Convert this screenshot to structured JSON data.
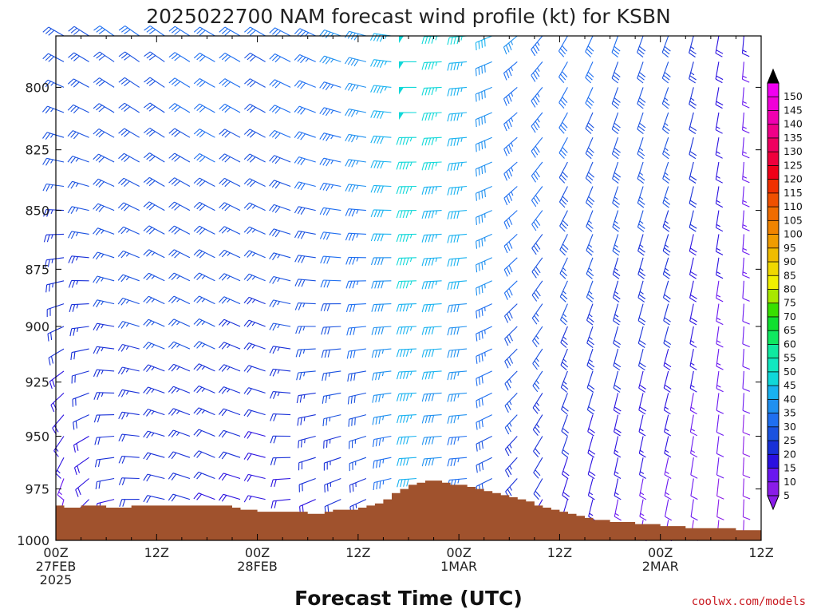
{
  "chart_data": {
    "type": "wind-profile",
    "title": "2025022700 NAM forecast wind profile (kt) for KSBN",
    "xlabel": "Forecast Time (UTC)",
    "credit": "coolwx.com/models",
    "y_ticks": [
      "800",
      "825",
      "850",
      "875",
      "900",
      "925",
      "950",
      "975",
      "1000"
    ],
    "y_range_hpa": [
      780,
      1000
    ],
    "x_range_hours": [
      0,
      84
    ],
    "x_ticks": [
      {
        "hour": 0,
        "line1": "00Z",
        "line2": "27FEB",
        "line3": "2025"
      },
      {
        "hour": 12,
        "line1": "12Z",
        "line2": "",
        "line3": ""
      },
      {
        "hour": 24,
        "line1": "00Z",
        "line2": "28FEB",
        "line3": ""
      },
      {
        "hour": 36,
        "line1": "12Z",
        "line2": "",
        "line3": ""
      },
      {
        "hour": 48,
        "line1": "00Z",
        "line2": "1MAR",
        "line3": ""
      },
      {
        "hour": 60,
        "line1": "12Z",
        "line2": "",
        "line3": ""
      },
      {
        "hour": 72,
        "line1": "00Z",
        "line2": "2MAR",
        "line3": ""
      },
      {
        "hour": 84,
        "line1": "12Z",
        "line2": "",
        "line3": ""
      }
    ],
    "colorbar": {
      "units": "kt",
      "levels": [
        5,
        10,
        15,
        20,
        25,
        30,
        35,
        40,
        45,
        50,
        55,
        60,
        65,
        70,
        75,
        80,
        85,
        90,
        95,
        100,
        105,
        110,
        115,
        120,
        125,
        130,
        135,
        140,
        145,
        150
      ],
      "colors": [
        "#8a1ce8",
        "#6a17f0",
        "#2a10e0",
        "#1830d8",
        "#1a52e0",
        "#1f6ff0",
        "#1f90f0",
        "#18b2f0",
        "#10d8d8",
        "#10e8c0",
        "#10eaa0",
        "#10e860",
        "#10e030",
        "#38e000",
        "#a8e800",
        "#f0f000",
        "#f0d800",
        "#f0bc00",
        "#f09c00",
        "#f08400",
        "#f06c00",
        "#f05000",
        "#f03000",
        "#f00018",
        "#f0003c",
        "#f00060",
        "#f00088",
        "#f000b0",
        "#f000d8",
        "#f000f0"
      ]
    },
    "surface_pressure_hpa": [
      [
        0,
        983
      ],
      [
        1,
        984
      ],
      [
        3,
        983
      ],
      [
        6,
        984
      ],
      [
        9,
        983
      ],
      [
        12,
        983
      ],
      [
        18,
        983
      ],
      [
        21,
        984
      ],
      [
        22,
        985
      ],
      [
        24,
        986
      ],
      [
        28,
        986
      ],
      [
        30,
        987
      ],
      [
        32,
        986
      ],
      [
        33,
        985
      ],
      [
        36,
        984
      ],
      [
        37,
        983
      ],
      [
        38,
        982
      ],
      [
        39,
        980
      ],
      [
        40,
        977
      ],
      [
        41,
        975
      ],
      [
        42,
        973
      ],
      [
        43,
        972
      ],
      [
        44,
        971
      ],
      [
        45,
        971
      ],
      [
        46,
        972
      ],
      [
        47,
        973
      ],
      [
        48,
        973
      ],
      [
        49,
        974
      ],
      [
        50,
        975
      ],
      [
        51,
        976
      ],
      [
        52,
        977
      ],
      [
        53,
        978
      ],
      [
        54,
        979
      ],
      [
        55,
        980
      ],
      [
        56,
        981
      ],
      [
        57,
        983
      ],
      [
        58,
        984
      ],
      [
        59,
        985
      ],
      [
        60,
        986
      ],
      [
        61,
        987
      ],
      [
        62,
        988
      ],
      [
        63,
        989
      ],
      [
        64,
        990
      ],
      [
        66,
        991
      ],
      [
        69,
        992
      ],
      [
        72,
        993
      ],
      [
        75,
        994
      ],
      [
        78,
        994
      ],
      [
        80,
        994
      ],
      [
        81,
        995
      ],
      [
        84,
        995
      ]
    ],
    "wind_field": {
      "levels_hpa": [
        780,
        790,
        800,
        810,
        820,
        830,
        840,
        850,
        860,
        870,
        880,
        890,
        900,
        910,
        920,
        930,
        940,
        950,
        960,
        970,
        980,
        990,
        1000
      ],
      "hour_step": 3,
      "keyframes_hours": [
        0,
        6,
        12,
        18,
        24,
        30,
        36,
        42,
        48,
        54,
        60,
        66,
        72,
        78,
        84
      ],
      "speed_top_kt": [
        28,
        30,
        30,
        32,
        30,
        33,
        38,
        48,
        45,
        35,
        32,
        30,
        28,
        18,
        12
      ],
      "speed_low_kt": [
        12,
        18,
        20,
        18,
        15,
        18,
        22,
        40,
        30,
        20,
        15,
        12,
        10,
        8,
        5
      ],
      "direction_top_deg": [
        300,
        305,
        305,
        300,
        300,
        295,
        285,
        270,
        265,
        230,
        210,
        200,
        200,
        190,
        180
      ],
      "direction_low_deg": [
        180,
        250,
        280,
        290,
        280,
        240,
        240,
        265,
        265,
        220,
        195,
        190,
        190,
        185,
        180
      ]
    }
  }
}
